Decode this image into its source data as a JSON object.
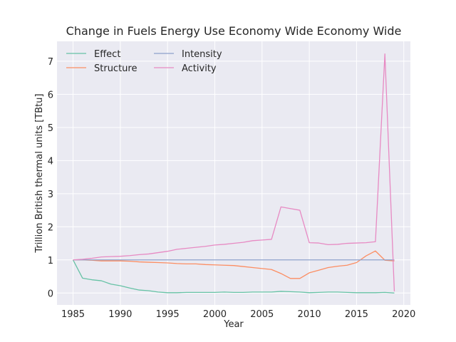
{
  "chart_data": {
    "type": "line",
    "title": "Change in Fuels Energy Use Economy Wide Economy Wide",
    "xlabel": "Year",
    "ylabel": "Trillion British thermal units [TBtu]",
    "xlim": [
      1983.3,
      2020.7
    ],
    "ylim": [
      -0.36,
      7.6
    ],
    "xticks": [
      1985,
      1990,
      1995,
      2000,
      2005,
      2010,
      2015,
      2020
    ],
    "yticks": [
      0,
      1,
      2,
      3,
      4,
      5,
      6,
      7
    ],
    "grid": true,
    "legend_position": "top-left",
    "x": [
      1985,
      1986,
      1987,
      1988,
      1989,
      1990,
      1991,
      1992,
      1993,
      1994,
      1995,
      1996,
      1997,
      1998,
      1999,
      2000,
      2001,
      2002,
      2003,
      2004,
      2005,
      2006,
      2007,
      2008,
      2009,
      2010,
      2011,
      2012,
      2013,
      2014,
      2015,
      2016,
      2017,
      2018,
      2019
    ],
    "series": [
      {
        "name": "Effect",
        "color": "#66c2a5",
        "values": [
          1.0,
          0.45,
          0.4,
          0.37,
          0.27,
          0.22,
          0.15,
          0.09,
          0.07,
          0.03,
          0.01,
          0.01,
          0.02,
          0.02,
          0.02,
          0.02,
          0.03,
          0.02,
          0.02,
          0.03,
          0.03,
          0.03,
          0.05,
          0.04,
          0.03,
          0.01,
          0.02,
          0.03,
          0.03,
          0.02,
          0.01,
          0.01,
          0.01,
          0.02,
          0.0
        ]
      },
      {
        "name": "Structure",
        "color": "#fc8d62",
        "values": [
          1.0,
          1.0,
          0.99,
          0.97,
          0.97,
          0.97,
          0.96,
          0.94,
          0.93,
          0.92,
          0.91,
          0.89,
          0.88,
          0.88,
          0.86,
          0.85,
          0.84,
          0.83,
          0.8,
          0.77,
          0.74,
          0.71,
          0.59,
          0.44,
          0.44,
          0.61,
          0.69,
          0.77,
          0.81,
          0.84,
          0.92,
          1.12,
          1.27,
          0.99,
          0.97
        ]
      },
      {
        "name": "Intensity",
        "color": "#8da0cb",
        "values": [
          1.0,
          1.0,
          1.0,
          1.0,
          1.0,
          1.0,
          1.0,
          1.0,
          1.0,
          1.0,
          1.0,
          1.0,
          1.0,
          1.0,
          1.0,
          1.0,
          1.0,
          1.0,
          1.0,
          1.0,
          1.0,
          1.0,
          1.0,
          1.0,
          1.0,
          1.0,
          1.0,
          1.0,
          1.0,
          1.0,
          1.0,
          1.0,
          1.0,
          1.0,
          1.0
        ]
      },
      {
        "name": "Activity",
        "color": "#e78ac3",
        "values": [
          1.0,
          1.02,
          1.05,
          1.09,
          1.1,
          1.11,
          1.13,
          1.16,
          1.18,
          1.22,
          1.26,
          1.32,
          1.35,
          1.38,
          1.41,
          1.45,
          1.47,
          1.5,
          1.53,
          1.58,
          1.6,
          1.62,
          2.6,
          2.55,
          2.5,
          1.52,
          1.51,
          1.46,
          1.47,
          1.5,
          1.51,
          1.52,
          1.55,
          7.22,
          0.05
        ]
      }
    ]
  }
}
